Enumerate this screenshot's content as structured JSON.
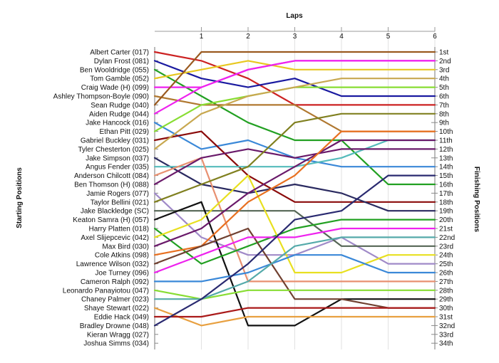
{
  "chart_data": {
    "type": "line",
    "title": "Laps",
    "ylabel_left": "Starting Positions",
    "ylabel_right": "Finishing Positions",
    "x": [
      0,
      1,
      2,
      3,
      4,
      5,
      6
    ],
    "x_tick_labels": [
      "1",
      "2",
      "3",
      "4",
      "5",
      "6"
    ],
    "y_range": [
      1,
      34
    ],
    "finishing_labels": [
      "1st",
      "2nd",
      "3rd",
      "4th",
      "5th",
      "6th",
      "7th",
      "8th",
      "9th",
      "10th",
      "11th",
      "12th",
      "13th",
      "14th",
      "15th",
      "16th",
      "17th",
      "18th",
      "19th",
      "20th",
      "21st",
      "22nd",
      "23rd",
      "24th",
      "25th",
      "26th",
      "27th",
      "28th",
      "29th",
      "30th",
      "31st",
      "32nd",
      "33rd",
      "34th"
    ],
    "drivers": [
      "Albert Carter (017)",
      "Dylan Frost (081)",
      "Ben Wooldridge (055)",
      "Tom Gamble (052)",
      "Craig Wade (H) (099)",
      "Ashley Thompson-Boyle (090)",
      "Sean Rudge (040)",
      "Aiden Rudge (044)",
      "Jake Hancock (016)",
      "Ethan Pitt (029)",
      "Gabriel Buckley (031)",
      "Tyler Chesterton (025)",
      "Jake Simpson (037)",
      "Angus Fender (035)",
      "Anderson Chilcott (084)",
      "Ben Thomson (H) (088)",
      "Jamie Rogers (077)",
      "Taylor Bellini (021)",
      "Jake Blackledge (SC)",
      "Keaton Samra (H) (057)",
      "Harry Platten (018)",
      "Axel Slijepcevic (042)",
      "Max Bird (030)",
      "Cole Atkins (098)",
      "Lawrence Wilson (032)",
      "Joe Turney (096)",
      "Cameron Ralph (092)",
      "Leonardo Panayiotou (047)",
      "Chaney Palmer (023)",
      "Shaye Stewart (022)",
      "Eddie Hack (049)",
      "Bradley Drowne (048)",
      "Kieran Wragg (027)",
      "Joshua Simms (034)"
    ],
    "series": [
      {
        "color": "#cc2222",
        "positions": [
          1,
          2,
          4,
          7,
          7,
          7,
          7
        ]
      },
      {
        "color": "#1a1aa0",
        "positions": [
          2,
          4,
          5,
          4,
          6,
          6,
          6
        ]
      },
      {
        "color": "#22a022",
        "positions": [
          3,
          6,
          9,
          11,
          11,
          16,
          16
        ]
      },
      {
        "color": "#e8c820",
        "positions": [
          4,
          3,
          2,
          3,
          3,
          3,
          3
        ]
      },
      {
        "color": "#ee22ee",
        "positions": [
          5,
          5,
          3,
          2,
          2,
          2,
          2
        ]
      },
      {
        "color": "#b07830",
        "positions": [
          6,
          7,
          7,
          7,
          10,
          10,
          10
        ]
      },
      {
        "color": "#9a5a20",
        "positions": [
          7,
          1,
          1,
          1,
          1,
          1,
          1
        ]
      },
      {
        "color": "#ee22ee",
        "positions": [
          8,
          5,
          3,
          2,
          2,
          2,
          2
        ]
      },
      {
        "color": "#3a88d8",
        "positions": [
          9,
          12,
          11,
          13,
          14,
          14,
          14
        ]
      },
      {
        "color": "#88dd33",
        "positions": [
          10,
          7,
          6,
          5,
          5,
          5,
          5
        ]
      },
      {
        "color": "#8a0a0a",
        "positions": [
          11,
          10,
          15,
          18,
          18,
          18,
          18
        ]
      },
      {
        "color": "#c8a850",
        "positions": [
          12,
          8,
          6,
          5,
          4,
          4,
          4
        ]
      },
      {
        "color": "#2a2a60",
        "positions": [
          13,
          16,
          17,
          16,
          17,
          19,
          19
        ]
      },
      {
        "color": "#55bbbb",
        "positions": [
          14,
          14,
          14,
          14,
          13,
          11,
          11
        ]
      },
      {
        "color": "#e89070",
        "positions": [
          15,
          13,
          27,
          27,
          27,
          27,
          27
        ]
      },
      {
        "color": "#6a1a6a",
        "positions": [
          16,
          13,
          12,
          13,
          12,
          12,
          12
        ]
      },
      {
        "color": "#a08ac8",
        "positions": [
          17,
          22,
          24,
          24,
          22,
          25,
          25
        ]
      },
      {
        "color": "#808020",
        "positions": [
          18,
          16,
          14,
          9,
          8,
          8,
          8
        ]
      },
      {
        "color": "#556655",
        "positions": [
          19,
          19,
          19,
          19,
          23,
          23,
          23
        ]
      },
      {
        "color": "#111111",
        "positions": [
          20,
          18,
          32,
          32,
          29,
          29,
          29
        ]
      },
      {
        "color": "#22a022",
        "positions": [
          21,
          25,
          23,
          21,
          20,
          20,
          20
        ]
      },
      {
        "color": "#e8e020",
        "positions": [
          22,
          20,
          15,
          26,
          26,
          24,
          24
        ]
      },
      {
        "color": "#6a1a6a",
        "positions": [
          23,
          21,
          17,
          14,
          11,
          11,
          11
        ]
      },
      {
        "color": "#e87020",
        "positions": [
          24,
          23,
          18,
          15,
          10,
          10,
          10
        ]
      },
      {
        "color": "#704030",
        "positions": [
          25,
          23,
          21,
          29,
          29,
          30,
          30
        ]
      },
      {
        "color": "#ee22ee",
        "positions": [
          26,
          24,
          22,
          22,
          21,
          21,
          21
        ]
      },
      {
        "color": "#3a88d8",
        "positions": [
          27,
          27,
          26,
          24,
          24,
          26,
          26
        ]
      },
      {
        "color": "#88dd33",
        "positions": [
          28,
          29,
          28,
          28,
          28,
          28,
          28
        ]
      },
      {
        "color": "#55aaaa",
        "positions": [
          29,
          29,
          27,
          23,
          22,
          22,
          22
        ]
      },
      {
        "color": "#e8a040",
        "positions": [
          30,
          32,
          31,
          31,
          31,
          31,
          31
        ]
      },
      {
        "color": "#aa1a1a",
        "positions": [
          31,
          31,
          30,
          30,
          30,
          30,
          30
        ]
      },
      {
        "color": "#2a2a70",
        "positions": [
          32,
          29,
          25,
          20,
          19,
          15,
          15
        ]
      },
      {
        "color": null,
        "positions": []
      },
      {
        "color": null,
        "positions": []
      }
    ]
  }
}
